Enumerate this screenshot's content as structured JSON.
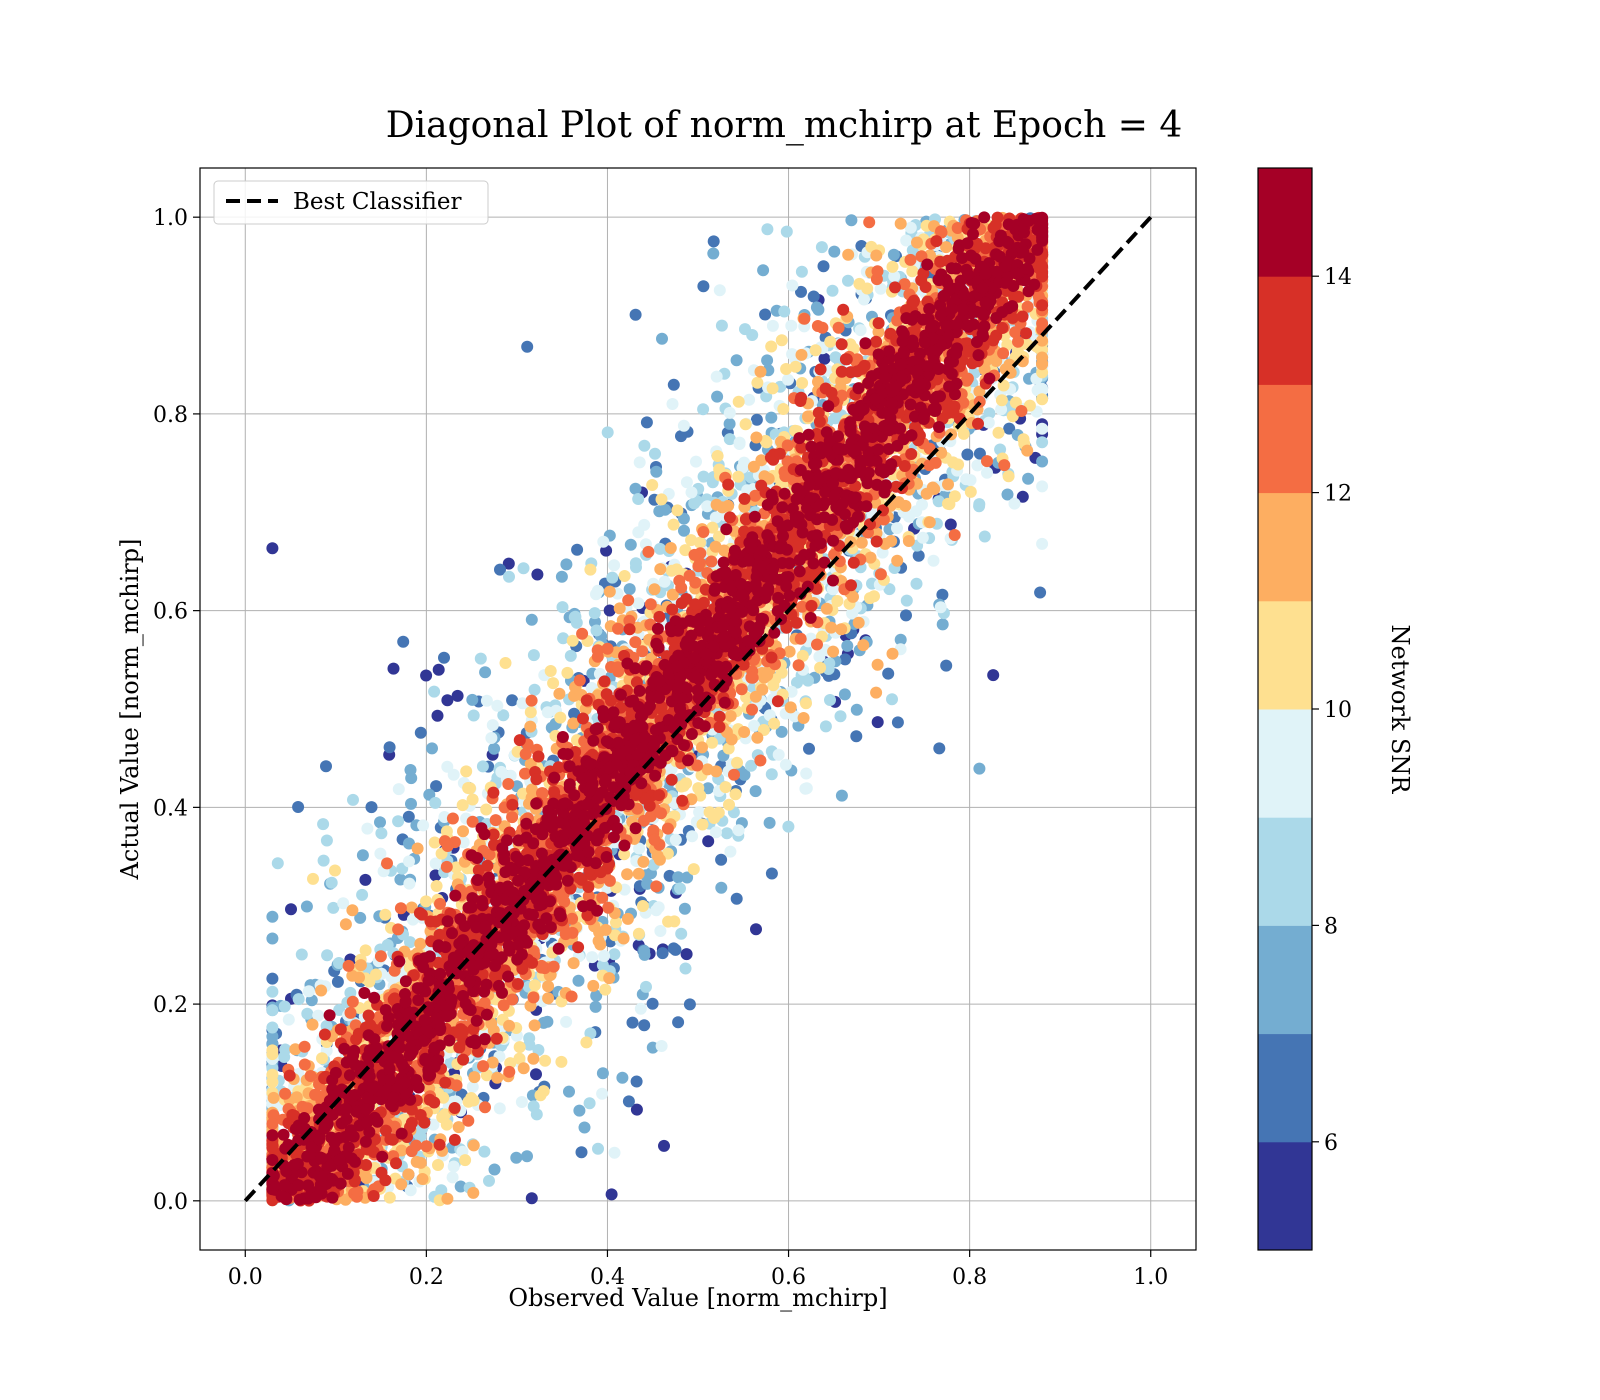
{
  "chart_data": {
    "type": "scatter",
    "title": "Diagonal Plot of norm_mchirp at Epoch = 4",
    "xlabel": "Observed Value [norm_mchirp]",
    "ylabel": "Actual Value [norm_mchirp]",
    "xlim": [
      -0.05,
      1.05
    ],
    "ylim": [
      -0.05,
      1.05
    ],
    "xticks": [
      0.0,
      0.2,
      0.4,
      0.6,
      0.8,
      1.0
    ],
    "yticks": [
      0.0,
      0.2,
      0.4,
      0.6,
      0.8,
      1.0
    ],
    "grid": true,
    "legend": {
      "placement": "top-left",
      "entries": [
        {
          "label": "Best Classifier",
          "style": "dashed",
          "color": "#000000"
        }
      ]
    },
    "reference_line": {
      "x": [
        0.0,
        1.0
      ],
      "y": [
        0.0,
        1.0
      ]
    },
    "colorbar": {
      "label": "Network SNR",
      "range": [
        5,
        15
      ],
      "ticks": [
        6,
        8,
        10,
        12,
        14
      ],
      "tick_labels": [
        "6",
        "8",
        "10",
        "12",
        "14"
      ],
      "bin_colors": [
        "#313695",
        "#4575b4",
        "#74add1",
        "#abd9e9",
        "#e0f3f8",
        "#fee090",
        "#fdae61",
        "#f46d43",
        "#d73027",
        "#a50026"
      ]
    },
    "distribution": {
      "description_free": true,
      "observed_range": [
        0.03,
        0.88
      ],
      "actual_range": [
        0.0,
        1.0
      ],
      "high_snr_spread": 0.05,
      "low_snr_spread": 0.3
    }
  }
}
